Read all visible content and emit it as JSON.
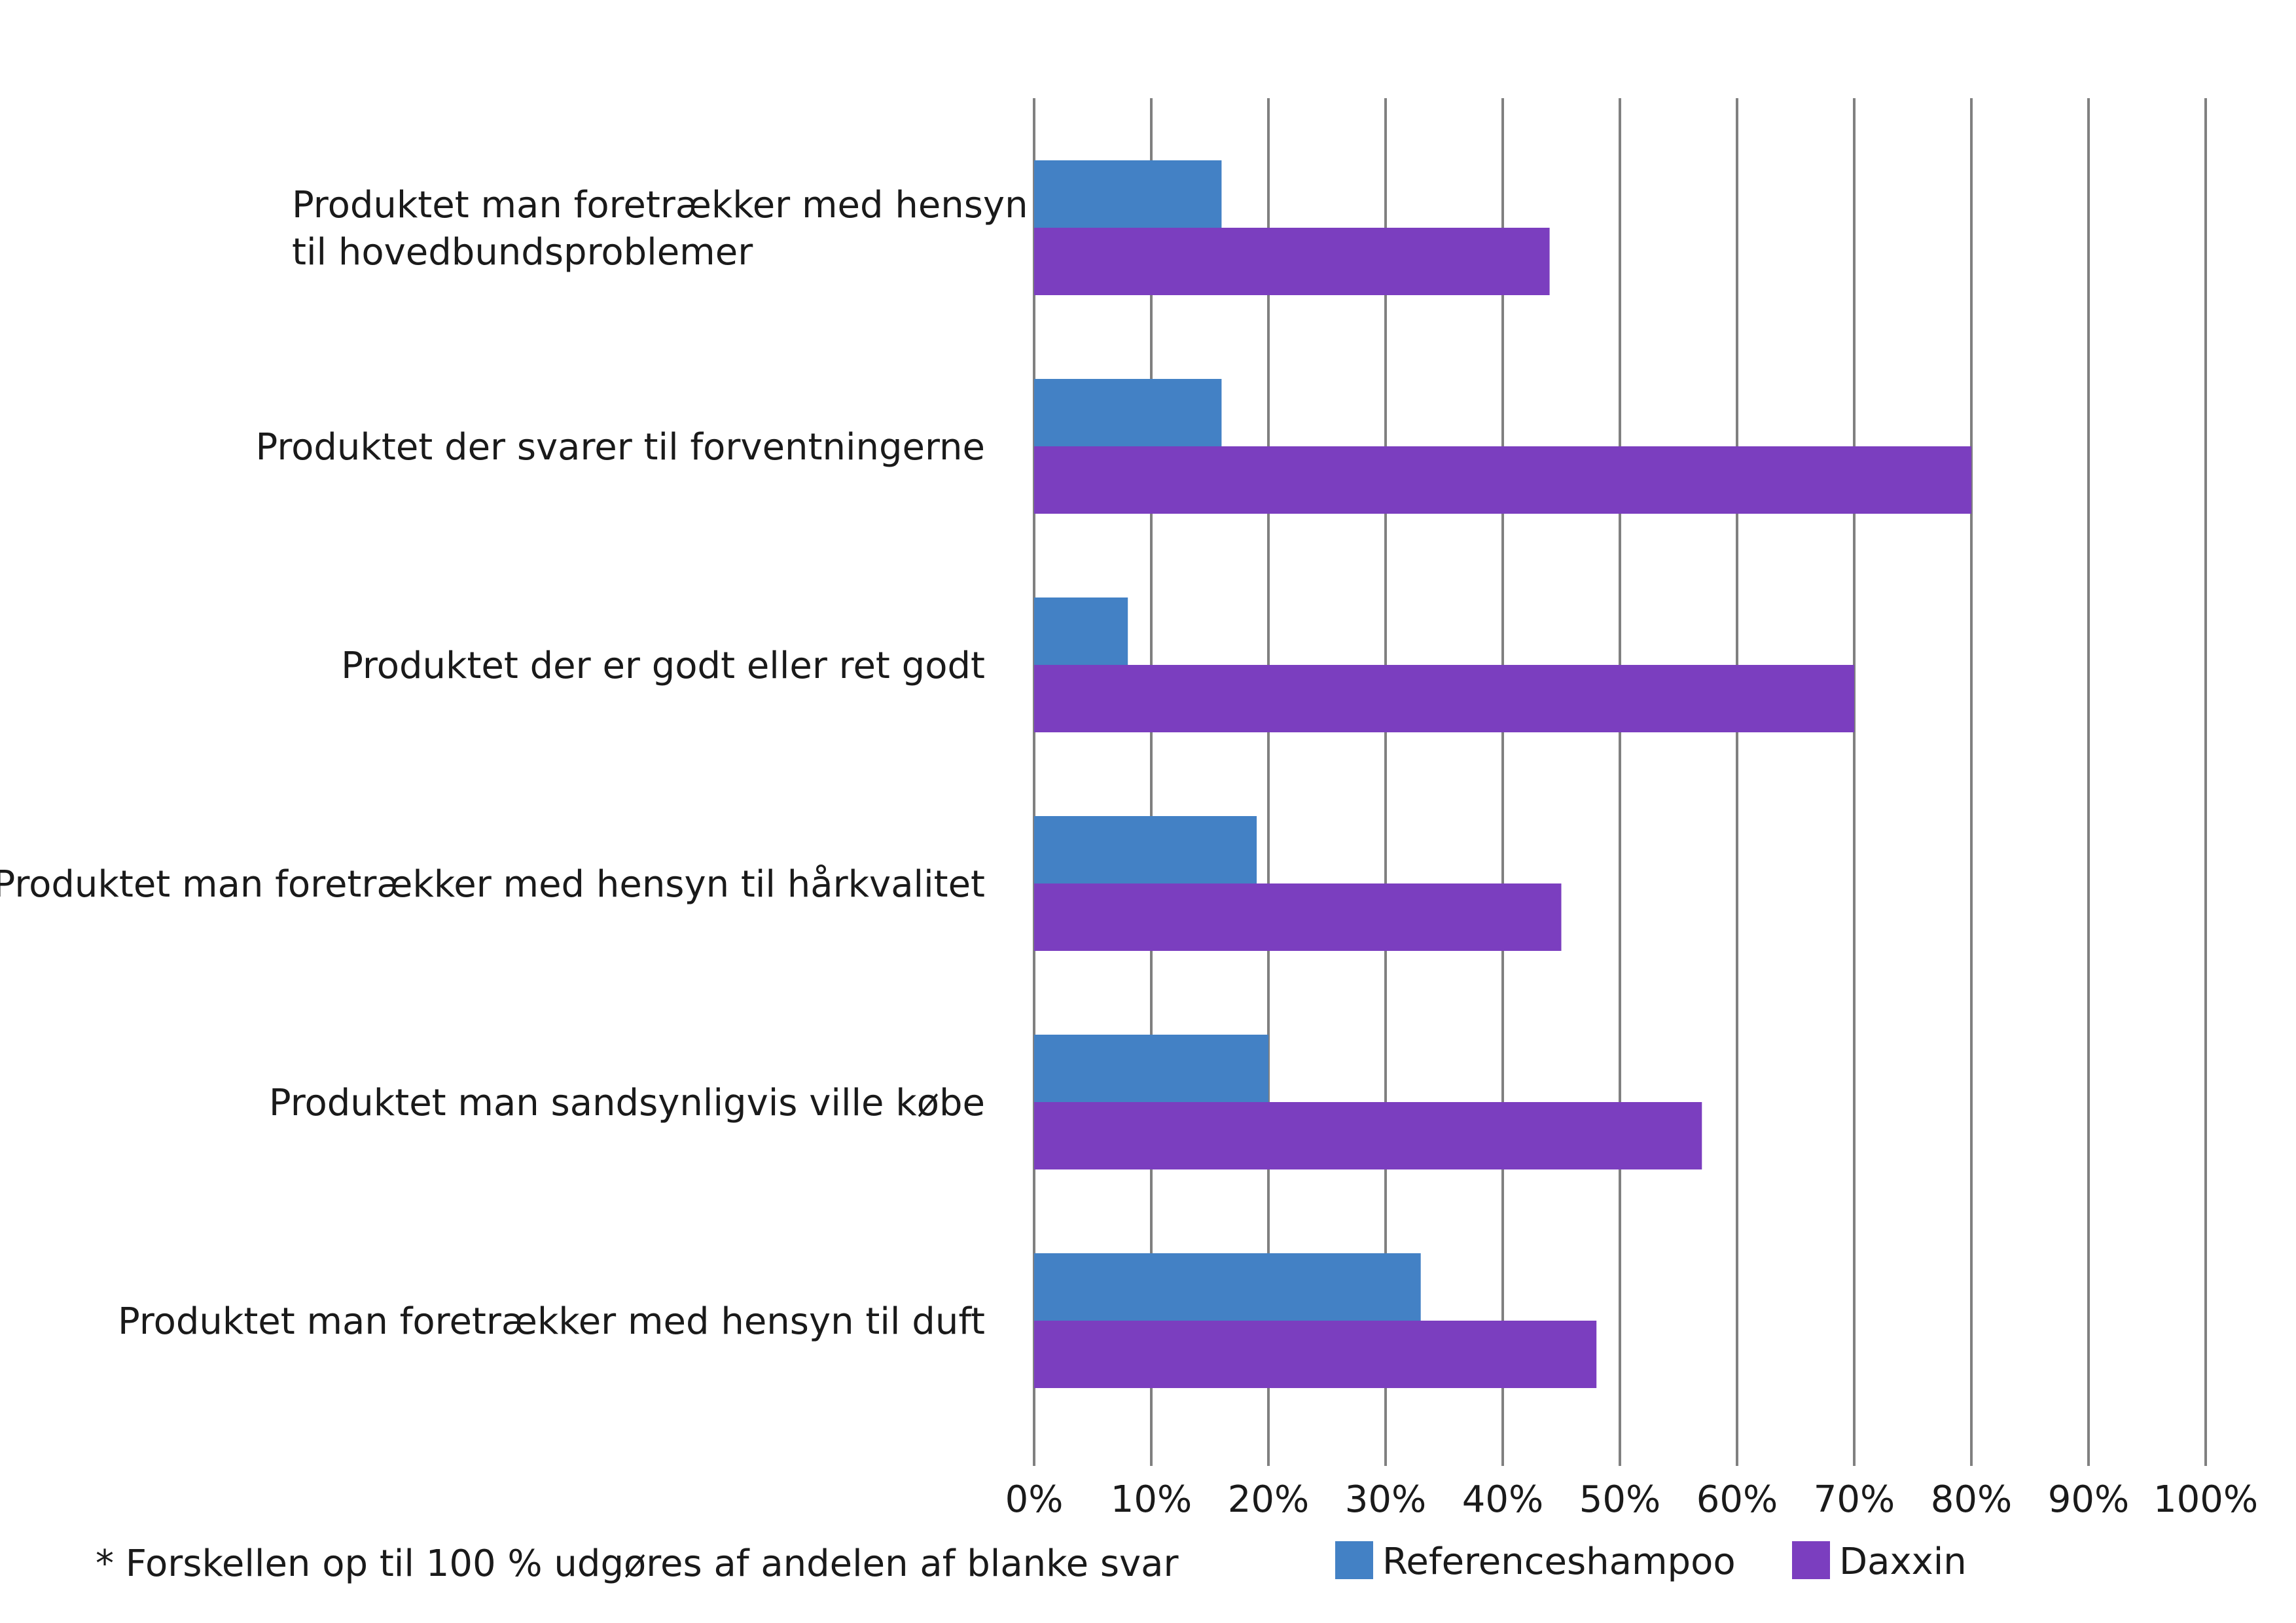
{
  "chart_data": {
    "type": "bar",
    "orientation": "horizontal",
    "categories": [
      [
        "Produktet man foretrækker med hensyn",
        "til hovedbundsproblemer"
      ],
      [
        "Produktet der svarer til forventningerne"
      ],
      [
        "Produktet der er godt eller ret godt"
      ],
      [
        "Produktet man foretrækker med hensyn til hårkvalitet"
      ],
      [
        "Produktet man sandsynligvis ville købe"
      ],
      [
        "Produktet man foretrækker med hensyn til duft"
      ]
    ],
    "series": [
      {
        "name": "Referenceshampoo",
        "color": "#4381C5",
        "values": [
          16,
          16,
          8,
          19,
          20,
          33
        ]
      },
      {
        "name": "Daxxin",
        "color": "#7B3EBF",
        "values": [
          44,
          80,
          70,
          45,
          57,
          48
        ]
      }
    ],
    "ticks": [
      "0%",
      "10%",
      "20%",
      "30%",
      "40%",
      "50%",
      "60%",
      "70%",
      "80%",
      "90%",
      "100%"
    ],
    "xlim": [
      0,
      100
    ],
    "grid": true,
    "legend": "bottom-right",
    "footnote": "* Forskellen op til 100 % udgøres af andelen af blanke svar",
    "gridColor": "#808080"
  }
}
